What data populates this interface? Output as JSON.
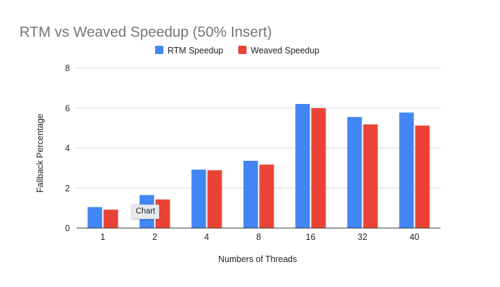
{
  "tooltip": {
    "text": "Chart"
  },
  "chart_data": {
    "type": "bar",
    "title": "RTM vs Weaved Speedup (50% Insert)",
    "xlabel": "Numbers of Threads",
    "ylabel": "Fallback Percentage",
    "categories": [
      "1",
      "2",
      "4",
      "8",
      "16",
      "32",
      "40"
    ],
    "series": [
      {
        "name": "RTM Speedup",
        "color": "#4285f4",
        "values": [
          1.05,
          1.65,
          2.92,
          3.36,
          6.2,
          5.55,
          5.77
        ]
      },
      {
        "name": "Weaved Speedup",
        "color": "#ea4335",
        "values": [
          0.92,
          1.43,
          2.89,
          3.17,
          5.99,
          5.18,
          5.12
        ]
      }
    ],
    "ylim": [
      0,
      8
    ],
    "yticks": [
      0,
      2,
      4,
      6,
      8
    ],
    "grid": true,
    "legend_position": "top-center"
  }
}
